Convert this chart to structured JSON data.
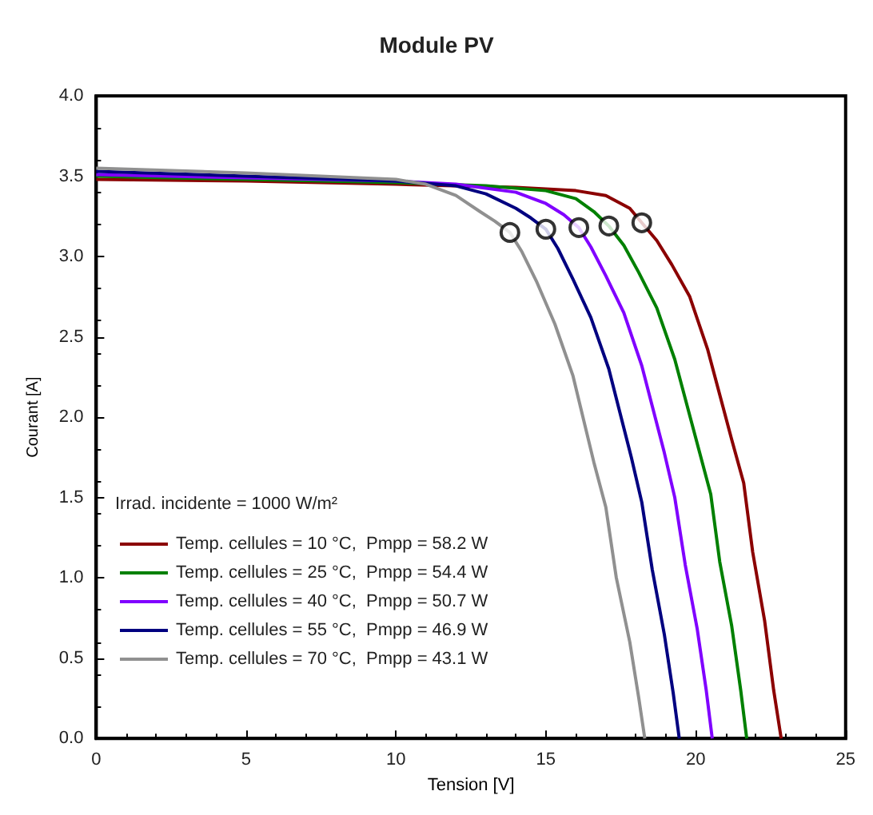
{
  "chart_data": {
    "type": "line",
    "title": "Module PV",
    "xlabel": "Tension [V]",
    "ylabel": "Courant [A]",
    "legend_title": "Irrad. incidente = 1000 W/m²",
    "xlim": [
      0,
      25
    ],
    "xticks": [
      0,
      5,
      10,
      15,
      20,
      25
    ],
    "ylim": [
      0,
      4
    ],
    "yticks": [
      {
        "value": 0,
        "label": "0.0"
      },
      0.5,
      {
        "value": 1,
        "label": "1.0"
      },
      1.5,
      {
        "value": 2,
        "label": "2.0"
      },
      2.5,
      {
        "value": 3,
        "label": "3.0"
      },
      3.5,
      {
        "value": 4,
        "label": "4.0"
      }
    ],
    "grid": false,
    "legend": "left",
    "line_style": "solid",
    "series": [
      {
        "name": "Temp. cellules = 10 °C,  Pmpp = 58.2 W",
        "color": "#8b0000",
        "x": [
          0,
          5,
          10,
          14,
          16,
          17,
          17.8,
          18.2,
          18.7,
          19.2,
          19.8,
          20.4,
          21.2,
          21.6,
          21.9,
          22.3,
          22.6,
          22.85
        ],
        "values": [
          3.48,
          3.47,
          3.45,
          3.43,
          3.41,
          3.38,
          3.3,
          3.21,
          3.1,
          2.95,
          2.75,
          2.42,
          1.86,
          1.59,
          1.16,
          0.73,
          0.3,
          0
        ]
      },
      {
        "name": "Temp. cellules = 25 °C,  Pmpp = 54.4 W",
        "color": "#008000",
        "x": [
          0,
          5,
          10,
          13,
          15,
          16,
          16.6,
          17.1,
          17.6,
          18.1,
          18.7,
          19.3,
          20.1,
          20.5,
          20.8,
          21.2,
          21.5,
          21.7
        ],
        "values": [
          3.5,
          3.48,
          3.46,
          3.44,
          3.41,
          3.36,
          3.28,
          3.19,
          3.07,
          2.9,
          2.68,
          2.36,
          1.8,
          1.52,
          1.1,
          0.7,
          0.3,
          0
        ]
      },
      {
        "name": "Temp. cellules = 40 °C,  Pmpp = 50.7 W",
        "color": "#8000ff",
        "x": [
          0,
          5,
          10,
          12,
          14,
          15,
          15.6,
          16.1,
          16.5,
          17,
          17.6,
          18.2,
          18.95,
          19.3,
          19.65,
          20.05,
          20.35,
          20.55
        ],
        "values": [
          3.51,
          3.49,
          3.47,
          3.45,
          3.4,
          3.33,
          3.26,
          3.18,
          3.06,
          2.88,
          2.65,
          2.32,
          1.78,
          1.5,
          1.08,
          0.68,
          0.3,
          0
        ]
      },
      {
        "name": "Temp. cellules = 55 °C,  Pmpp = 46.9 W",
        "color": "#000080",
        "x": [
          0,
          5,
          10,
          12,
          13,
          14,
          14.5,
          15,
          15.4,
          15.9,
          16.5,
          17.1,
          17.85,
          18.2,
          18.55,
          18.95,
          19.25,
          19.45
        ],
        "values": [
          3.53,
          3.5,
          3.47,
          3.44,
          3.39,
          3.3,
          3.24,
          3.17,
          3.05,
          2.86,
          2.62,
          2.3,
          1.75,
          1.47,
          1.05,
          0.65,
          0.28,
          0
        ]
      },
      {
        "name": "Temp. cellules = 70 °C,  Pmpp = 43.1 W",
        "color": "#909090",
        "x": [
          0,
          5,
          10,
          11,
          12,
          12.8,
          13.3,
          13.8,
          14.2,
          14.7,
          15.3,
          15.9,
          16.6,
          17,
          17.35,
          17.8,
          18.1,
          18.3
        ],
        "values": [
          3.55,
          3.52,
          3.48,
          3.45,
          3.38,
          3.28,
          3.22,
          3.15,
          3.03,
          2.84,
          2.58,
          2.26,
          1.72,
          1.44,
          1,
          0.6,
          0.25,
          0
        ]
      },
      {
        "type": "scatter",
        "marker": "circle",
        "color": "#000000",
        "x": [
          13.8,
          15,
          16.1,
          17.1,
          18.2
        ],
        "values": [
          3.15,
          3.17,
          3.18,
          3.19,
          3.21
        ]
      }
    ]
  }
}
